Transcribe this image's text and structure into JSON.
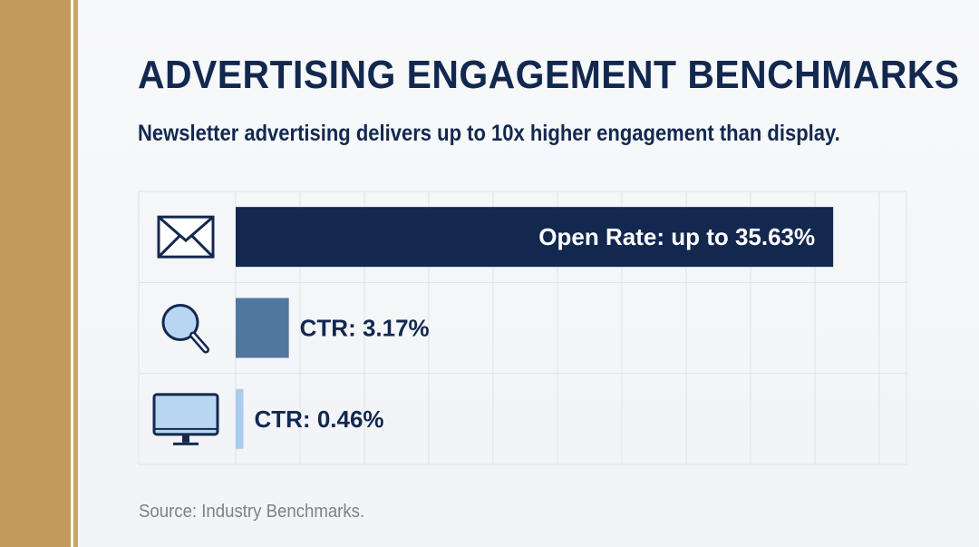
{
  "title": "ADVERTISING ENGAGEMENT BENCHMARKS",
  "subtitle": "Newsletter advertising delivers up to 10x higher engagement than display.",
  "source": "Source: Industry Benchmarks.",
  "colors": {
    "accent_gold": "#c29b5c",
    "navy": "#13284f",
    "bar_open_rate": "#13284f",
    "bar_ctr_mid": "#52779f",
    "bar_ctr_light": "#a8cdef"
  },
  "chart_data": {
    "type": "bar",
    "orientation": "horizontal",
    "title": "ADVERTISING ENGAGEMENT BENCHMARKS",
    "subtitle": "Newsletter advertising delivers up to 10x higher engagement than display.",
    "xlim": [
      0,
      40
    ],
    "grid": true,
    "bars": [
      {
        "label": "Open Rate: up to 35.63%",
        "value": 35.63,
        "icon": "envelope-icon",
        "color": "#13284f",
        "label_position": "inside"
      },
      {
        "label": "CTR: 3.17%",
        "value": 3.17,
        "icon": "magnifier-icon",
        "color": "#52779f",
        "label_position": "outside"
      },
      {
        "label": "CTR: 0.46%",
        "value": 0.46,
        "icon": "monitor-icon",
        "color": "#a8cdef",
        "label_position": "outside"
      }
    ]
  }
}
